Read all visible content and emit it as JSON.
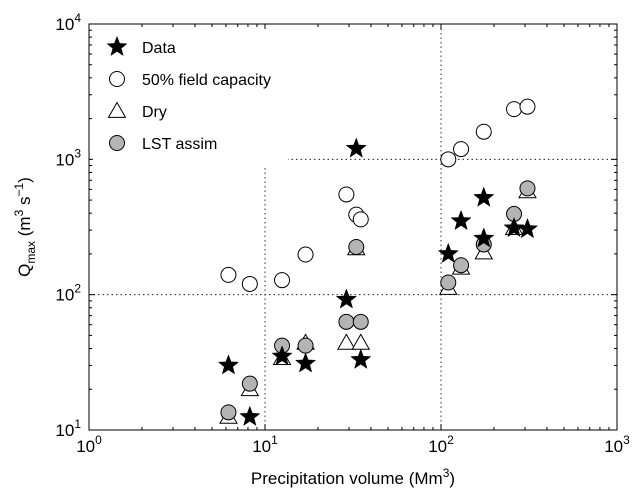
{
  "chart_data": {
    "type": "scatter",
    "xscale": "log",
    "yscale": "log",
    "xlim": [
      1,
      1000
    ],
    "ylim": [
      10,
      10000
    ],
    "grid": true,
    "grid_style": "dotted",
    "legend_placement": "top-left",
    "xlabel": "Precipitation volume (Mm3)",
    "ylabel": "Qmax (m3 s-1)",
    "x_ticks": [
      {
        "base": "10",
        "exp": "0"
      },
      {
        "base": "10",
        "exp": "1"
      },
      {
        "base": "10",
        "exp": "2"
      },
      {
        "base": "10",
        "exp": "3"
      }
    ],
    "y_ticks": [
      {
        "base": "10",
        "exp": "1"
      },
      {
        "base": "10",
        "exp": "2"
      },
      {
        "base": "10",
        "exp": "3"
      },
      {
        "base": "10",
        "exp": "4"
      }
    ],
    "series": [
      {
        "name": "Data",
        "marker": "star",
        "color": "#000000",
        "points": [
          [
            6.2,
            30
          ],
          [
            8.2,
            12.5
          ],
          [
            12.5,
            35
          ],
          [
            17,
            31
          ],
          [
            29,
            92
          ],
          [
            33,
            1200
          ],
          [
            35,
            33
          ],
          [
            110,
            200
          ],
          [
            130,
            350
          ],
          [
            175,
            520
          ],
          [
            175,
            260
          ],
          [
            260,
            310
          ],
          [
            310,
            305
          ]
        ]
      },
      {
        "name": "50% field capacity",
        "marker": "circle-open",
        "color": "#000000",
        "points": [
          [
            6.2,
            140
          ],
          [
            8.2,
            120
          ],
          [
            12.5,
            128
          ],
          [
            17,
            198
          ],
          [
            29,
            550
          ],
          [
            33,
            390
          ],
          [
            35,
            360
          ],
          [
            110,
            1000
          ],
          [
            130,
            1190
          ],
          [
            175,
            1600
          ],
          [
            260,
            2350
          ],
          [
            310,
            2450
          ]
        ]
      },
      {
        "name": "Dry",
        "marker": "triangle-open",
        "color": "#000000",
        "points": [
          [
            6.2,
            12.5
          ],
          [
            8.2,
            20
          ],
          [
            12.5,
            34
          ],
          [
            17,
            44
          ],
          [
            29,
            44
          ],
          [
            33,
            220
          ],
          [
            35,
            44
          ],
          [
            110,
            112
          ],
          [
            130,
            158
          ],
          [
            175,
            205
          ],
          [
            260,
            310
          ],
          [
            310,
            580
          ]
        ]
      },
      {
        "name": "LST assim",
        "marker": "circle-filled",
        "color": "#b4b4b4",
        "points": [
          [
            6.2,
            13.5
          ],
          [
            8.2,
            22
          ],
          [
            12.5,
            42
          ],
          [
            17,
            42
          ],
          [
            29,
            63
          ],
          [
            33,
            225
          ],
          [
            35,
            63
          ],
          [
            110,
            123
          ],
          [
            130,
            165
          ],
          [
            175,
            235
          ],
          [
            260,
            395
          ],
          [
            310,
            610
          ]
        ]
      }
    ]
  }
}
